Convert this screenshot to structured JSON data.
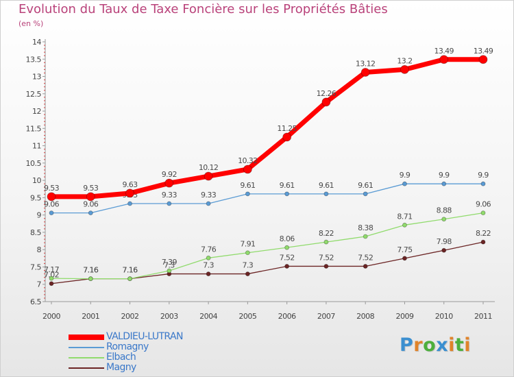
{
  "title": "Evolution du Taux de Taxe Foncière sur les Propriétés Bâties",
  "subtitle": "(en %)",
  "logo": {
    "text": "Proxiti",
    "letters": [
      {
        "ch": "P",
        "color": "#3b8fd0"
      },
      {
        "ch": "r",
        "color": "#e0832a"
      },
      {
        "ch": "o",
        "color": "#4caf3c"
      },
      {
        "ch": "x",
        "color": "#3b8fd0"
      },
      {
        "ch": "i",
        "color": "#e0832a"
      },
      {
        "ch": "t",
        "color": "#4caf3c"
      },
      {
        "ch": "i",
        "color": "#e0832a"
      }
    ]
  },
  "chart_data": {
    "type": "line",
    "title": "Evolution du Taux de Taxe Foncière sur les Propriétés Bâties",
    "subtitle": "(en %)",
    "x": [
      "2000",
      "2001",
      "2002",
      "2003",
      "2004",
      "2005",
      "2006",
      "2007",
      "2008",
      "2009",
      "2010",
      "2011"
    ],
    "ylim": [
      6.5,
      14
    ],
    "yticks": [
      6.5,
      7,
      7.5,
      8,
      8.5,
      9,
      9.5,
      10,
      10.5,
      11,
      11.5,
      12,
      12.5,
      13,
      13.5,
      14
    ],
    "ytick_labels": [
      "6.5",
      "7",
      "7.5",
      "8",
      "8.5",
      "9",
      "9.5",
      "10",
      "10.5",
      "11",
      "11.5",
      "12",
      "12.5",
      "13",
      "13.5",
      "14"
    ],
    "grid": false,
    "legend_position": "bottom-left",
    "series": [
      {
        "name": "VALDIEU-LUTRAN",
        "color": "#ff0000",
        "values": [
          9.53,
          9.53,
          9.63,
          9.92,
          10.12,
          10.32,
          11.25,
          12.26,
          13.12,
          13.2,
          13.49,
          13.49
        ],
        "labels": [
          "9.53",
          "9.53",
          "9.63",
          "9.92",
          "10.12",
          "10.32",
          "11.25",
          "12.26",
          "13.12",
          "13.2",
          "13.49",
          "13.49"
        ]
      },
      {
        "name": "Romagny",
        "color": "#5a9bd4",
        "values": [
          9.06,
          9.06,
          9.33,
          9.33,
          9.33,
          9.61,
          9.61,
          9.61,
          9.61,
          9.9,
          9.9,
          9.9
        ],
        "labels": [
          "9.06",
          "9.06",
          "9.33",
          "9.33",
          "9.33",
          "9.61",
          "9.61",
          "9.61",
          "9.61",
          "9.9",
          "9.9",
          "9.9"
        ]
      },
      {
        "name": "Elbach",
        "color": "#90db6c",
        "values": [
          7.17,
          7.16,
          7.16,
          7.39,
          7.76,
          7.91,
          8.06,
          8.22,
          8.38,
          8.71,
          8.88,
          9.06
        ],
        "labels": [
          "7.17",
          "7.16",
          "7.16",
          "7.39",
          "7.76",
          "7.91",
          "8.06",
          "8.22",
          "8.38",
          "8.71",
          "8.88",
          "9.06"
        ]
      },
      {
        "name": "Magny",
        "color": "#6b2424",
        "values": [
          7.02,
          7.16,
          7.16,
          7.3,
          7.3,
          7.3,
          7.52,
          7.52,
          7.52,
          7.75,
          7.98,
          8.22
        ],
        "labels": [
          "7.02",
          "7.16",
          "7.16",
          "7.3",
          "7.3",
          "7.3",
          "7.52",
          "7.52",
          "7.52",
          "7.75",
          "7.98",
          "8.22"
        ]
      }
    ]
  }
}
